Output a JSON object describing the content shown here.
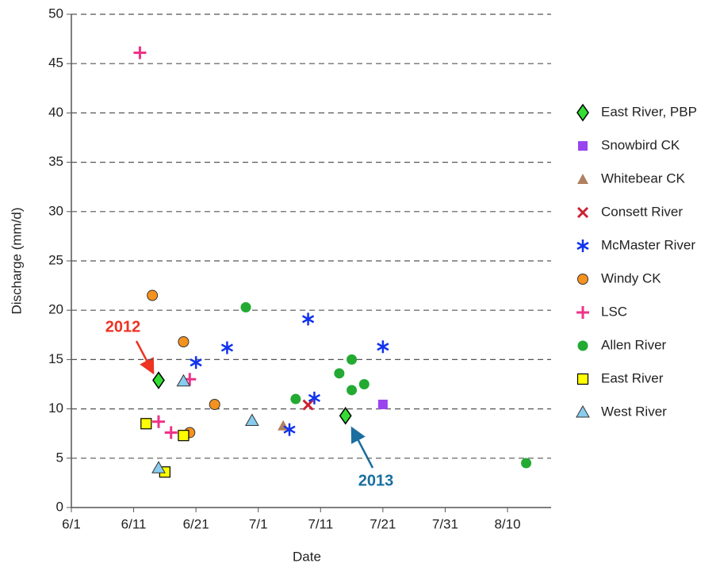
{
  "chart_data": {
    "type": "scatter",
    "xlabel": "Date",
    "ylabel": "Discharge (mm/d)",
    "xlim": [
      "6/1",
      "8/17"
    ],
    "xticks": [
      "6/1",
      "6/11",
      "6/21",
      "7/1",
      "7/11",
      "7/21",
      "7/31",
      "8/10"
    ],
    "ylim": [
      0,
      50
    ],
    "yticks": [
      0,
      5,
      10,
      15,
      20,
      25,
      30,
      35,
      40,
      45,
      50
    ],
    "grid": true,
    "series": [
      {
        "name": "East River, PBP",
        "marker": "diamond",
        "color": "#33dd33",
        "x": [
          "6/15",
          "7/15"
        ],
        "values": [
          12.9,
          9.3
        ]
      },
      {
        "name": "Snowbird CK",
        "marker": "square",
        "color": "#9944ee",
        "x": [
          "7/21"
        ],
        "values": [
          10.45
        ]
      },
      {
        "name": "Whitebear CK",
        "marker": "triangle",
        "color": "#b08060",
        "x": [
          "7/5"
        ],
        "values": [
          8.3
        ]
      },
      {
        "name": "Consett River",
        "marker": "x",
        "color": "#cc2233",
        "x": [
          "7/9"
        ],
        "values": [
          10.4
        ]
      },
      {
        "name": "McMaster River",
        "marker": "asterisk",
        "color": "#1133ee",
        "x": [
          "6/21",
          "6/26",
          "7/9",
          "7/6",
          "7/10",
          "7/21"
        ],
        "values": [
          14.7,
          16.2,
          19.1,
          7.9,
          11.1,
          16.3
        ]
      },
      {
        "name": "Windy CK",
        "marker": "circle",
        "color": "#f5921e",
        "x": [
          "6/14",
          "6/19",
          "6/24",
          "6/20"
        ],
        "values": [
          21.5,
          16.8,
          10.45,
          7.6
        ]
      },
      {
        "name": "LSC",
        "marker": "plus",
        "color": "#ee3388",
        "x": [
          "6/12",
          "6/15",
          "6/17",
          "6/20"
        ],
        "values": [
          46.1,
          8.7,
          7.6,
          13
        ]
      },
      {
        "name": "Allen River",
        "marker": "dot",
        "color": "#22aa33",
        "x": [
          "6/29",
          "7/7",
          "7/14",
          "7/16",
          "7/16",
          "7/18",
          "8/13"
        ],
        "values": [
          20.3,
          11.0,
          13.6,
          15.0,
          11.9,
          12.5,
          4.5
        ]
      },
      {
        "name": "East River",
        "marker": "square-outline",
        "color": "#ffff00",
        "x": [
          "6/13",
          "6/19",
          "6/16"
        ],
        "values": [
          8.5,
          7.3,
          3.6
        ]
      },
      {
        "name": "West River",
        "marker": "triangle-outline",
        "color": "#88ccee",
        "x": [
          "6/19",
          "6/30",
          "6/15"
        ],
        "values": [
          12.8,
          8.8,
          4.0
        ]
      }
    ],
    "annotations": [
      {
        "text": "2012",
        "color": "#ee3322"
      },
      {
        "text": "2013",
        "color": "#1a6fa0"
      }
    ]
  }
}
